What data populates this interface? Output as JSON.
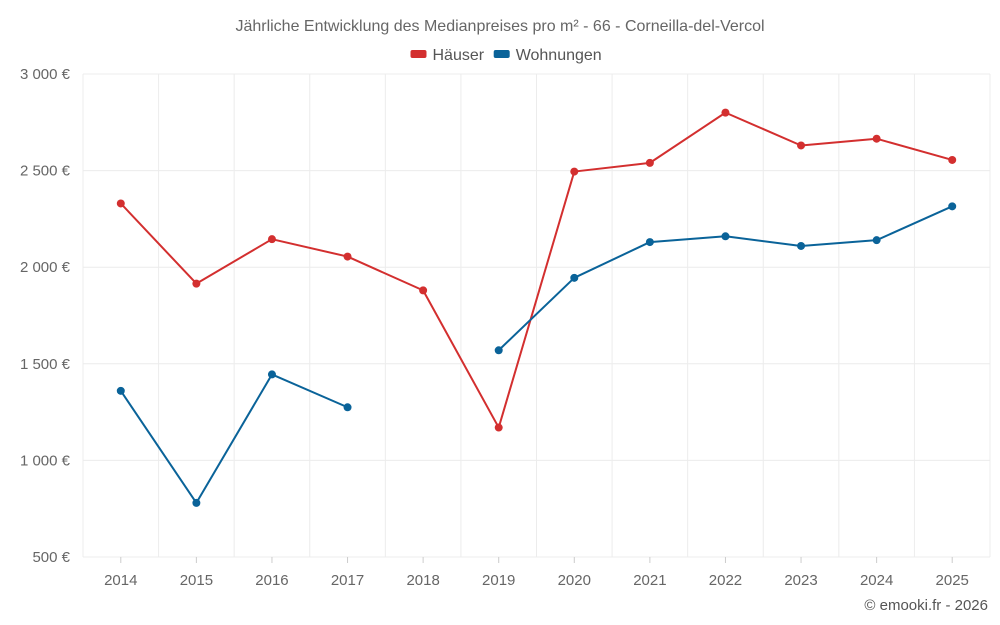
{
  "chart_data": {
    "type": "line",
    "title": "Jährliche Entwicklung des Medianpreises pro m² - 66 - Corneilla-del-Vercol",
    "x": [
      "2014",
      "2015",
      "2016",
      "2017",
      "2018",
      "2019",
      "2020",
      "2021",
      "2022",
      "2023",
      "2024",
      "2025"
    ],
    "series": [
      {
        "name": "Häuser",
        "color": "#d32f2f",
        "values": [
          2330,
          1915,
          2145,
          2055,
          1880,
          1170,
          2495,
          2540,
          2800,
          2630,
          2665,
          2555
        ]
      },
      {
        "name": "Wohnungen",
        "color": "#0a6399",
        "values": [
          1360,
          780,
          1445,
          1275,
          null,
          1570,
          1945,
          2130,
          2160,
          2110,
          2140,
          2315
        ]
      }
    ],
    "ylim": [
      500,
      3000
    ],
    "yticks": [
      500,
      1000,
      1500,
      2000,
      2500,
      3000
    ],
    "ytick_labels": [
      "500 €",
      "1 000 €",
      "1 500 €",
      "2 000 €",
      "2 500 €",
      "3 000 €"
    ],
    "xlabel": "",
    "ylabel": "",
    "legend_position": "top-center",
    "grid": true
  },
  "credit": "© emooki.fr - 2026"
}
